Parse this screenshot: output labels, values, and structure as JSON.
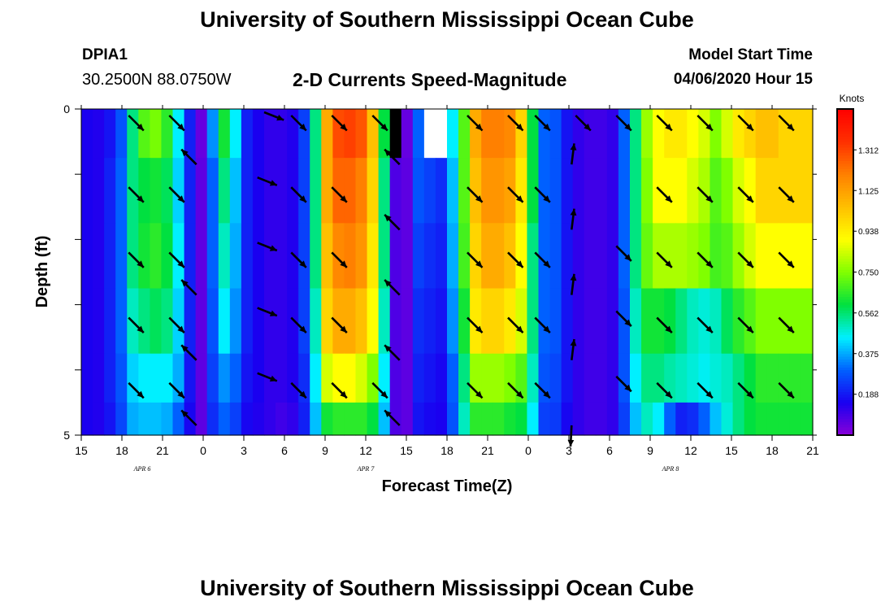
{
  "page": {
    "title_top": "University of Southern Mississippi Ocean Cube",
    "title_bottom": "University of Southern Mississippi Ocean Cube",
    "station_id": "DPIA1",
    "station_location": "30.2500N 88.0750W",
    "subtitle": "2-D Currents Speed-Magnitude",
    "model_start_label": "Model Start Time",
    "model_start_value": "04/06/2020 Hour 15"
  },
  "chart_data": {
    "type": "heatmap",
    "xlabel": "Forecast Time(Z)",
    "ylabel": "Depth (ft)",
    "x_tick_labels": [
      "15",
      "18",
      "21",
      "0",
      "3",
      "6",
      "9",
      "12",
      "15",
      "18",
      "21",
      "0",
      "3",
      "6",
      "9",
      "12",
      "15",
      "18",
      "21"
    ],
    "x_hours": [
      0,
      3,
      6,
      9,
      12,
      15,
      18,
      21,
      24,
      27,
      30,
      33,
      36,
      39,
      42,
      45,
      48,
      51,
      54
    ],
    "xlim": [
      0,
      54
    ],
    "date_labels": [
      {
        "hour": 4.5,
        "text": "APR 6"
      },
      {
        "hour": 21,
        "text": "APR 7"
      },
      {
        "hour": 43.5,
        "text": "APR 8"
      }
    ],
    "y_tick_labels": [
      "0",
      "5"
    ],
    "ylim": [
      0,
      5
    ],
    "depth_levels": [
      0.25,
      1.25,
      2.25,
      3.25,
      4.25,
      4.75
    ],
    "colorbar": {
      "unit": "Knots",
      "range": [
        0,
        1.5
      ],
      "tick_values": [
        0.188,
        0.375,
        0.562,
        0.75,
        0.938,
        1.125,
        1.312
      ],
      "tick_labels": [
        "0.188",
        "0.375",
        "0.562",
        "0.750",
        "0.938",
        "1.125",
        "1.312"
      ],
      "colors": [
        "#8a00d8",
        "#1a00f0",
        "#0060ff",
        "#00f0ff",
        "#00e040",
        "#80ff00",
        "#ffff00",
        "#ffc000",
        "#ff8000",
        "#ff3000",
        "#ff0000"
      ]
    },
    "speed_knots": [
      [
        0.15,
        0.14,
        0.18,
        0.28,
        0.55,
        0.7,
        0.74,
        0.65,
        0.45,
        0.2,
        0.05,
        0.35,
        0.62,
        0.45,
        0.2,
        0.15,
        0.12,
        0.12,
        0.14,
        0.25,
        0.55,
        1.1,
        1.3,
        1.32,
        1.28,
        1.05,
        0.6,
        0.0,
        0.05,
        0.3,
        0.3,
        0.25,
        0.45,
        0.7,
        1.1,
        1.2,
        1.2,
        1.18,
        1.0,
        0.6,
        0.3,
        0.28,
        0.18,
        0.12,
        0.1,
        0.1,
        0.12,
        0.3,
        0.55,
        0.78,
        0.9,
        0.95,
        0.95,
        0.9,
        0.85,
        0.75,
        0.85,
        0.95,
        1.0,
        1.05,
        1.05,
        1.0,
        1.0,
        1.0
      ],
      [
        0.15,
        0.14,
        0.2,
        0.3,
        0.55,
        0.6,
        0.62,
        0.58,
        0.42,
        0.2,
        0.06,
        0.3,
        0.55,
        0.4,
        0.2,
        0.15,
        0.12,
        0.12,
        0.14,
        0.25,
        0.55,
        1.1,
        1.25,
        1.25,
        1.2,
        1.0,
        0.55,
        0.08,
        0.06,
        0.28,
        0.25,
        0.22,
        0.4,
        0.7,
        1.05,
        1.15,
        1.15,
        1.12,
        0.95,
        0.6,
        0.3,
        0.28,
        0.18,
        0.12,
        0.1,
        0.1,
        0.12,
        0.3,
        0.55,
        0.75,
        0.9,
        0.9,
        0.9,
        0.85,
        0.8,
        0.7,
        0.75,
        0.85,
        0.9,
        1.0,
        1.0,
        1.0,
        1.0,
        1.0
      ],
      [
        0.15,
        0.14,
        0.2,
        0.3,
        0.55,
        0.62,
        0.65,
        0.6,
        0.45,
        0.2,
        0.06,
        0.3,
        0.5,
        0.38,
        0.2,
        0.15,
        0.12,
        0.12,
        0.14,
        0.25,
        0.55,
        1.05,
        1.18,
        1.2,
        1.15,
        0.95,
        0.55,
        0.08,
        0.06,
        0.25,
        0.22,
        0.2,
        0.38,
        0.68,
        1.0,
        1.1,
        1.1,
        1.05,
        0.9,
        0.55,
        0.3,
        0.28,
        0.18,
        0.12,
        0.1,
        0.1,
        0.12,
        0.3,
        0.55,
        0.72,
        0.8,
        0.8,
        0.8,
        0.78,
        0.75,
        0.68,
        0.7,
        0.78,
        0.85,
        0.9,
        0.9,
        0.9,
        0.9,
        0.9
      ],
      [
        0.15,
        0.14,
        0.2,
        0.3,
        0.5,
        0.55,
        0.58,
        0.55,
        0.42,
        0.2,
        0.06,
        0.28,
        0.45,
        0.35,
        0.2,
        0.15,
        0.12,
        0.12,
        0.14,
        0.25,
        0.5,
        1.0,
        1.1,
        1.1,
        1.05,
        0.9,
        0.5,
        0.08,
        0.06,
        0.22,
        0.2,
        0.18,
        0.35,
        0.62,
        0.95,
        1.0,
        1.0,
        0.95,
        0.85,
        0.55,
        0.3,
        0.28,
        0.18,
        0.12,
        0.1,
        0.1,
        0.12,
        0.28,
        0.5,
        0.62,
        0.62,
        0.6,
        0.55,
        0.5,
        0.48,
        0.5,
        0.58,
        0.65,
        0.7,
        0.75,
        0.75,
        0.75,
        0.75,
        0.75
      ],
      [
        0.15,
        0.14,
        0.2,
        0.28,
        0.42,
        0.45,
        0.45,
        0.45,
        0.38,
        0.18,
        0.06,
        0.25,
        0.35,
        0.3,
        0.18,
        0.15,
        0.12,
        0.12,
        0.14,
        0.22,
        0.45,
        0.85,
        0.9,
        0.9,
        0.85,
        0.75,
        0.45,
        0.08,
        0.06,
        0.2,
        0.18,
        0.16,
        0.3,
        0.55,
        0.78,
        0.78,
        0.78,
        0.75,
        0.7,
        0.5,
        0.28,
        0.26,
        0.18,
        0.12,
        0.1,
        0.1,
        0.12,
        0.28,
        0.45,
        0.55,
        0.55,
        0.52,
        0.5,
        0.48,
        0.46,
        0.48,
        0.5,
        0.55,
        0.6,
        0.65,
        0.65,
        0.65,
        0.65,
        0.65
      ],
      [
        0.15,
        0.14,
        0.18,
        0.26,
        0.38,
        0.4,
        0.4,
        0.38,
        0.3,
        0.16,
        0.06,
        0.22,
        0.3,
        0.25,
        0.16,
        0.14,
        0.12,
        0.1,
        0.12,
        0.2,
        0.4,
        0.62,
        0.65,
        0.65,
        0.65,
        0.6,
        0.4,
        0.08,
        0.06,
        0.18,
        0.16,
        0.15,
        0.28,
        0.5,
        0.65,
        0.65,
        0.65,
        0.62,
        0.6,
        0.45,
        0.25,
        0.24,
        0.16,
        0.12,
        0.1,
        0.1,
        0.12,
        0.25,
        0.4,
        0.5,
        0.45,
        0.3,
        0.2,
        0.22,
        0.3,
        0.4,
        0.48,
        0.55,
        0.6,
        0.62,
        0.62,
        0.62,
        0.62,
        0.62
      ]
    ],
    "missing_cells": [
      {
        "row": 0,
        "col": 27,
        "color": "#000000"
      },
      {
        "row": 0,
        "col": 30,
        "color": "#ffffff"
      },
      {
        "row": 0,
        "col": 31,
        "color": "#ffffff"
      }
    ],
    "arrows": [
      {
        "hour": 3.5,
        "depth": 0.1,
        "dir": "se"
      },
      {
        "hour": 6.5,
        "depth": 0.1,
        "dir": "se"
      },
      {
        "hour": 13.5,
        "depth": 0.05,
        "dir": "ese"
      },
      {
        "hour": 15.5,
        "depth": 0.1,
        "dir": "se"
      },
      {
        "hour": 18.5,
        "depth": 0.1,
        "dir": "se"
      },
      {
        "hour": 21.5,
        "depth": 0.1,
        "dir": "se"
      },
      {
        "hour": 28.5,
        "depth": 0.1,
        "dir": "se"
      },
      {
        "hour": 31.5,
        "depth": 0.1,
        "dir": "se"
      },
      {
        "hour": 33.5,
        "depth": 0.1,
        "dir": "se"
      },
      {
        "hour": 36.5,
        "depth": 0.1,
        "dir": "se"
      },
      {
        "hour": 39.5,
        "depth": 0.1,
        "dir": "se"
      },
      {
        "hour": 42.5,
        "depth": 0.1,
        "dir": "se"
      },
      {
        "hour": 45.5,
        "depth": 0.1,
        "dir": "se"
      },
      {
        "hour": 48.5,
        "depth": 0.1,
        "dir": "se"
      },
      {
        "hour": 51.5,
        "depth": 0.1,
        "dir": "se"
      },
      {
        "hour": 3.5,
        "depth": 1.2,
        "dir": "se"
      },
      {
        "hour": 6.5,
        "depth": 1.2,
        "dir": "se"
      },
      {
        "hour": 8.5,
        "depth": 0.85,
        "dir": "nw"
      },
      {
        "hour": 13,
        "depth": 1.05,
        "dir": "ese"
      },
      {
        "hour": 15.5,
        "depth": 1.2,
        "dir": "se"
      },
      {
        "hour": 18.5,
        "depth": 1.2,
        "dir": "se"
      },
      {
        "hour": 23.5,
        "depth": 0.85,
        "dir": "nw"
      },
      {
        "hour": 28.5,
        "depth": 1.2,
        "dir": "se"
      },
      {
        "hour": 31.5,
        "depth": 1.2,
        "dir": "se"
      },
      {
        "hour": 33.5,
        "depth": 1.2,
        "dir": "se"
      },
      {
        "hour": 36.2,
        "depth": 0.85,
        "dir": "n"
      },
      {
        "hour": 42.5,
        "depth": 1.2,
        "dir": "se"
      },
      {
        "hour": 45.5,
        "depth": 1.2,
        "dir": "se"
      },
      {
        "hour": 48.5,
        "depth": 1.2,
        "dir": "se"
      },
      {
        "hour": 51.5,
        "depth": 1.2,
        "dir": "se"
      },
      {
        "hour": 3.5,
        "depth": 2.2,
        "dir": "se"
      },
      {
        "hour": 6.5,
        "depth": 2.2,
        "dir": "se"
      },
      {
        "hour": 13,
        "depth": 2.05,
        "dir": "ese"
      },
      {
        "hour": 15.5,
        "depth": 2.2,
        "dir": "se"
      },
      {
        "hour": 18.5,
        "depth": 2.2,
        "dir": "se"
      },
      {
        "hour": 23.5,
        "depth": 1.85,
        "dir": "nw"
      },
      {
        "hour": 28.5,
        "depth": 2.2,
        "dir": "se"
      },
      {
        "hour": 31.5,
        "depth": 2.2,
        "dir": "se"
      },
      {
        "hour": 33.5,
        "depth": 2.2,
        "dir": "se"
      },
      {
        "hour": 36.2,
        "depth": 1.85,
        "dir": "n"
      },
      {
        "hour": 39.5,
        "depth": 2.1,
        "dir": "se"
      },
      {
        "hour": 42.5,
        "depth": 2.2,
        "dir": "se"
      },
      {
        "hour": 45.5,
        "depth": 2.2,
        "dir": "se"
      },
      {
        "hour": 48.5,
        "depth": 2.2,
        "dir": "se"
      },
      {
        "hour": 51.5,
        "depth": 2.2,
        "dir": "se"
      },
      {
        "hour": 3.5,
        "depth": 3.2,
        "dir": "se"
      },
      {
        "hour": 6.5,
        "depth": 3.2,
        "dir": "se"
      },
      {
        "hour": 8.5,
        "depth": 2.85,
        "dir": "nw"
      },
      {
        "hour": 13,
        "depth": 3.05,
        "dir": "ese"
      },
      {
        "hour": 15.5,
        "depth": 3.2,
        "dir": "se"
      },
      {
        "hour": 18.5,
        "depth": 3.2,
        "dir": "se"
      },
      {
        "hour": 23.5,
        "depth": 2.85,
        "dir": "nw"
      },
      {
        "hour": 28.5,
        "depth": 3.2,
        "dir": "se"
      },
      {
        "hour": 31.5,
        "depth": 3.2,
        "dir": "se"
      },
      {
        "hour": 33.5,
        "depth": 3.2,
        "dir": "se"
      },
      {
        "hour": 36.2,
        "depth": 2.85,
        "dir": "n"
      },
      {
        "hour": 39.5,
        "depth": 3.1,
        "dir": "se"
      },
      {
        "hour": 42.5,
        "depth": 3.2,
        "dir": "se"
      },
      {
        "hour": 45.5,
        "depth": 3.2,
        "dir": "se"
      },
      {
        "hour": 48.5,
        "depth": 3.2,
        "dir": "se"
      },
      {
        "hour": 51.5,
        "depth": 3.2,
        "dir": "se"
      },
      {
        "hour": 3.5,
        "depth": 4.2,
        "dir": "se"
      },
      {
        "hour": 6.5,
        "depth": 4.2,
        "dir": "se"
      },
      {
        "hour": 8.5,
        "depth": 3.85,
        "dir": "nw"
      },
      {
        "hour": 13,
        "depth": 4.05,
        "dir": "ese"
      },
      {
        "hour": 15.5,
        "depth": 4.2,
        "dir": "se"
      },
      {
        "hour": 18.5,
        "depth": 4.2,
        "dir": "se"
      },
      {
        "hour": 21.5,
        "depth": 4.2,
        "dir": "se"
      },
      {
        "hour": 23.5,
        "depth": 3.85,
        "dir": "nw"
      },
      {
        "hour": 28.5,
        "depth": 4.2,
        "dir": "se"
      },
      {
        "hour": 31.5,
        "depth": 4.2,
        "dir": "se"
      },
      {
        "hour": 33.5,
        "depth": 4.2,
        "dir": "se"
      },
      {
        "hour": 36.2,
        "depth": 3.85,
        "dir": "n"
      },
      {
        "hour": 39.5,
        "depth": 4.1,
        "dir": "se"
      },
      {
        "hour": 42.5,
        "depth": 4.2,
        "dir": "se"
      },
      {
        "hour": 45.5,
        "depth": 4.2,
        "dir": "se"
      },
      {
        "hour": 48.5,
        "depth": 4.2,
        "dir": "se"
      },
      {
        "hour": 51.5,
        "depth": 4.2,
        "dir": "se"
      },
      {
        "hour": 8.5,
        "depth": 4.85,
        "dir": "nw"
      },
      {
        "hour": 23.5,
        "depth": 4.85,
        "dir": "nw"
      },
      {
        "hour": 36.2,
        "depth": 4.85,
        "dir": "s"
      }
    ]
  }
}
